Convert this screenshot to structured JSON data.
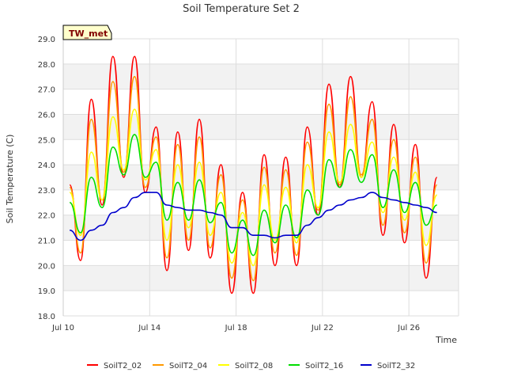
{
  "chart_data": {
    "type": "line",
    "title": "Soil Temperature Set 2",
    "xlabel": "Time",
    "ylabel": "Soil Temperature (C)",
    "ylim": [
      18.0,
      29.0
    ],
    "yticks": [
      "18.0",
      "19.0",
      "20.0",
      "21.0",
      "22.0",
      "23.0",
      "24.0",
      "25.0",
      "26.0",
      "27.0",
      "28.0",
      "29.0"
    ],
    "xlim": [
      10.0,
      28.3
    ],
    "xticks": [
      {
        "label": "Jul 10",
        "value": 10
      },
      {
        "label": "Jul 14",
        "value": 14
      },
      {
        "label": "Jul 18",
        "value": 18
      },
      {
        "label": "Jul 22",
        "value": 22
      },
      {
        "label": "Jul 26",
        "value": 26
      }
    ],
    "grid": true,
    "legend_position": "bottom",
    "annotation": "TW_met",
    "series_days": [
      10.3,
      10.8,
      11.3,
      11.8,
      12.3,
      12.8,
      13.3,
      13.8,
      14.3,
      14.8,
      15.3,
      15.8,
      16.3,
      16.8,
      17.3,
      17.8,
      18.3,
      18.8,
      19.3,
      19.8,
      20.3,
      20.8,
      21.3,
      21.8,
      22.3,
      22.8,
      23.3,
      23.8,
      24.3,
      24.8,
      25.3,
      25.8,
      26.3,
      26.8,
      27.3
    ],
    "series": [
      {
        "name": "SoilT2_02",
        "color": "#ff0000",
        "values": [
          23.2,
          20.2,
          26.6,
          22.4,
          28.3,
          23.5,
          28.3,
          22.9,
          25.5,
          19.8,
          25.3,
          20.6,
          25.8,
          20.3,
          24.0,
          18.9,
          22.9,
          18.9,
          24.4,
          20.0,
          24.3,
          20.0,
          25.5,
          22.0,
          27.2,
          23.1,
          27.5,
          23.5,
          26.5,
          21.2,
          25.6,
          20.9,
          24.8,
          19.5,
          23.5
        ]
      },
      {
        "name": "SoilT2_04",
        "color": "#ff9900",
        "values": [
          23.1,
          20.5,
          25.8,
          22.6,
          27.3,
          23.7,
          27.5,
          23.1,
          25.1,
          20.3,
          24.8,
          21.0,
          25.1,
          20.7,
          23.6,
          19.5,
          22.6,
          19.4,
          23.9,
          20.5,
          23.8,
          20.4,
          24.9,
          22.2,
          26.4,
          23.2,
          26.7,
          23.6,
          25.8,
          21.6,
          25.0,
          21.3,
          24.3,
          20.1,
          23.2
        ]
      },
      {
        "name": "SoilT2_08",
        "color": "#ffff00",
        "values": [
          22.9,
          21.2,
          24.5,
          22.6,
          25.9,
          23.8,
          26.2,
          23.4,
          24.6,
          21.0,
          24.0,
          21.5,
          24.1,
          21.2,
          22.9,
          20.1,
          22.1,
          20.0,
          23.2,
          21.0,
          23.1,
          20.9,
          24.0,
          22.3,
          25.3,
          23.3,
          25.6,
          23.5,
          24.9,
          22.1,
          24.3,
          21.8,
          23.7,
          20.8,
          22.8
        ]
      },
      {
        "name": "SoilT2_16",
        "color": "#00dd00",
        "values": [
          22.5,
          21.3,
          23.5,
          22.3,
          24.7,
          23.6,
          25.2,
          23.5,
          24.1,
          21.8,
          23.3,
          21.8,
          23.4,
          21.7,
          22.5,
          20.5,
          21.8,
          20.4,
          22.2,
          20.9,
          22.4,
          21.1,
          23.0,
          22.0,
          24.2,
          23.1,
          24.6,
          23.3,
          24.4,
          22.3,
          23.8,
          22.1,
          23.3,
          21.6,
          22.4
        ]
      },
      {
        "name": "SoilT2_32",
        "color": "#0000cc",
        "values": [
          21.4,
          21.0,
          21.4,
          21.6,
          22.1,
          22.3,
          22.7,
          22.9,
          22.9,
          22.4,
          22.3,
          22.2,
          22.2,
          22.1,
          22.0,
          21.5,
          21.5,
          21.2,
          21.2,
          21.1,
          21.2,
          21.2,
          21.6,
          21.9,
          22.2,
          22.4,
          22.6,
          22.7,
          22.9,
          22.7,
          22.6,
          22.5,
          22.4,
          22.3,
          22.1
        ]
      }
    ]
  }
}
